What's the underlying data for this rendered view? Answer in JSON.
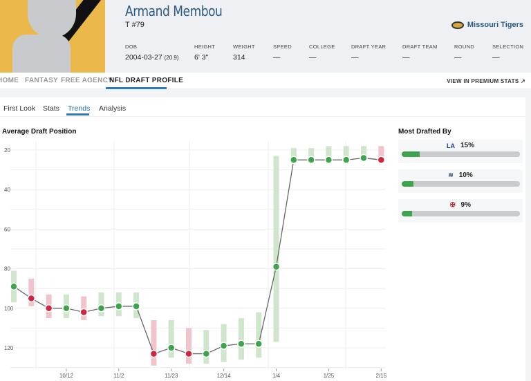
{
  "player": {
    "name": "Armand Membou",
    "position": "T #79",
    "team": "Missouri Tigers"
  },
  "stats": [
    {
      "label": "DOB",
      "value": "2004-03-27",
      "extra": "(20.9)"
    },
    {
      "label": "HEIGHT",
      "value": "6' 3\""
    },
    {
      "label": "WEIGHT",
      "value": "314"
    },
    {
      "label": "SPEED",
      "value": "—"
    },
    {
      "label": "COLLEGE",
      "value": "—"
    },
    {
      "label": "DRAFT YEAR",
      "value": "—"
    },
    {
      "label": "DRAFT TEAM",
      "value": "—"
    },
    {
      "label": "ROUND",
      "value": "—"
    },
    {
      "label": "SELECTION",
      "value": "—"
    }
  ],
  "nav": {
    "items": [
      "HOME",
      "FANTASY",
      "FREE AGENCY",
      "NFL DRAFT PROFILE"
    ],
    "premium": "VIEW IN PREMIUM STATS ↗"
  },
  "subtabs": [
    "First Look",
    "Stats",
    "Trends",
    "Analysis"
  ],
  "most_drafted": {
    "title": "Most Drafted By",
    "teams": [
      {
        "team": "LA Rams",
        "pct": "15%",
        "value": 15,
        "color": "#1f3a93"
      },
      {
        "team": "Seattle Seahawks",
        "pct": "10%",
        "value": 10,
        "color": "#2c4a6e"
      },
      {
        "team": "Houston Texans",
        "pct": "9%",
        "value": 9,
        "color": "#a6192e"
      }
    ]
  },
  "colors": {
    "green": "#3fa34d",
    "red": "#d0243f",
    "accent": "#2c7ab8"
  },
  "chart_data": {
    "type": "line",
    "title": "Average Draft Position",
    "ylim": [
      130,
      17
    ],
    "yinvert": true,
    "yticks": [
      20,
      40,
      60,
      80,
      100,
      120
    ],
    "xticks": [
      {
        "label": "10/12",
        "i": 3
      },
      {
        "label": "11/2",
        "i": 6
      },
      {
        "label": "11/23",
        "i": 9
      },
      {
        "label": "12/14",
        "i": 12
      },
      {
        "label": "1/4",
        "i": 15
      },
      {
        "label": "1/25",
        "i": 18
      },
      {
        "label": "2/15",
        "i": 21
      }
    ],
    "values": [
      89,
      95,
      100,
      100,
      102,
      100,
      99,
      99,
      123,
      120,
      123,
      123,
      119,
      118,
      118,
      79,
      25,
      25,
      25,
      25,
      24,
      25
    ],
    "trend": [
      "up",
      "down",
      "down",
      "up",
      "down",
      "up",
      "up",
      "up",
      "down",
      "up",
      "down",
      "up",
      "up",
      "up",
      "up",
      "up",
      "up",
      "up",
      "up",
      "up",
      "up",
      "down"
    ],
    "ranges": [
      [
        81,
        97
      ],
      [
        85,
        99
      ],
      [
        93,
        105
      ],
      [
        93,
        105
      ],
      [
        94,
        106
      ],
      [
        92,
        104
      ],
      [
        92,
        104
      ],
      [
        92,
        105
      ],
      [
        106,
        129
      ],
      [
        106,
        125
      ],
      [
        110,
        128
      ],
      [
        111,
        128
      ],
      [
        108,
        127
      ],
      [
        105,
        126
      ],
      [
        102,
        125
      ],
      [
        23,
        117
      ],
      [
        19,
        25
      ],
      [
        19,
        25
      ],
      [
        18,
        25
      ],
      [
        18,
        25
      ],
      [
        18,
        24
      ],
      [
        18,
        25
      ]
    ]
  }
}
